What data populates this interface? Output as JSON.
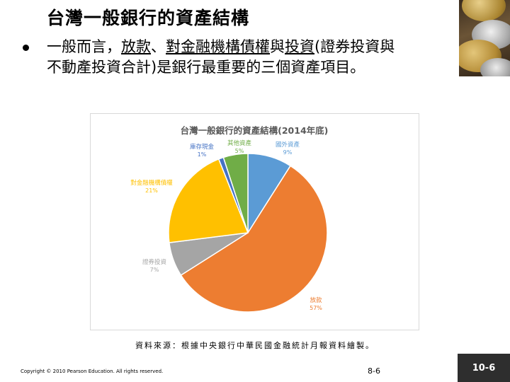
{
  "slide": {
    "title": "台灣一般銀行的資產結構",
    "bullet": {
      "part1": "一般而言，",
      "part2": "放款",
      "part3": "、",
      "part4": "對金融機構債權",
      "part5": "與",
      "part6": "投資",
      "part7": "(證券投資與",
      "line2": "不動產投資合計)是銀行最重要的三個資產項目。"
    },
    "source": "資料來源：根據中央銀行中華民國金融統計月報資料繪製。",
    "copyright": "Copyright © 2010 Pearson Education. All rights reserved.",
    "page_center": "8-6",
    "page_badge": "10-6"
  },
  "chart_data": {
    "type": "pie",
    "title": "台灣一般銀行的資產結構(2014年底)",
    "slices": [
      {
        "label": "國外資產",
        "value": 9,
        "display": "9%",
        "color": "#5b9bd5"
      },
      {
        "label": "放款",
        "value": 57,
        "display": "57%",
        "color": "#ed7d31"
      },
      {
        "label": "證券投資",
        "value": 7,
        "display": "7%",
        "color": "#a5a5a5"
      },
      {
        "label": "對金融機構債權",
        "value": 21,
        "display": "21%",
        "color": "#ffc000"
      },
      {
        "label": "庫存現金",
        "value": 1,
        "display": "1%",
        "color": "#4472c4"
      },
      {
        "label": "其他資產",
        "value": 5,
        "display": "5%",
        "color": "#70ad47"
      }
    ]
  }
}
